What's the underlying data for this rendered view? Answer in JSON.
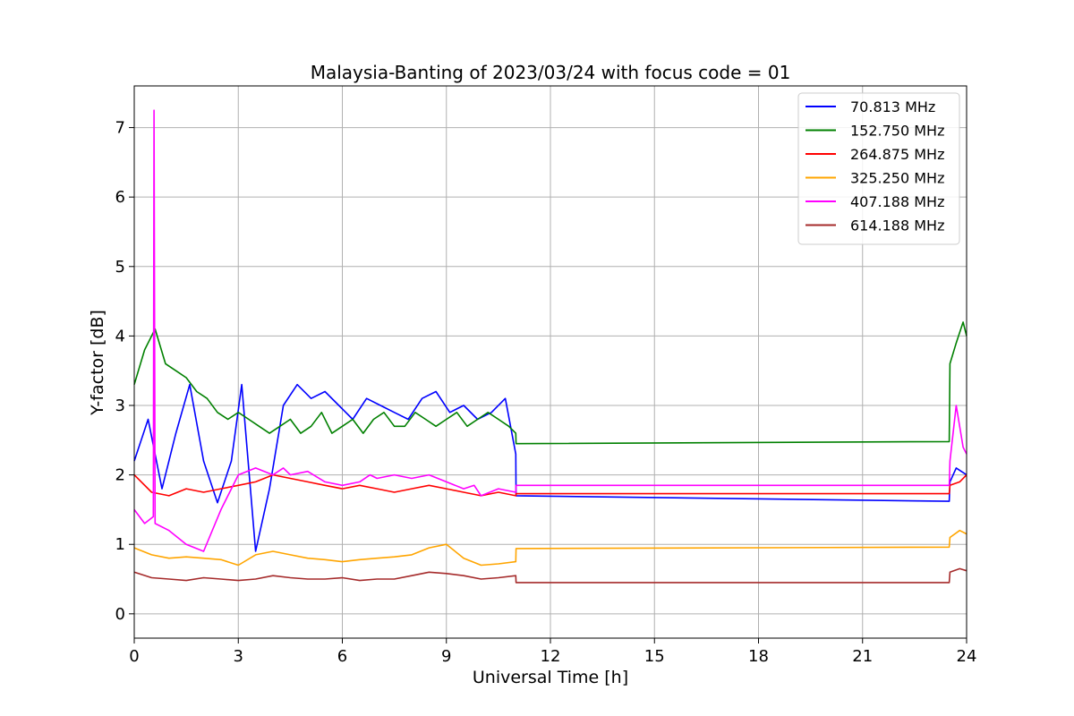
{
  "chart_data": {
    "type": "line",
    "title": "Malaysia-Banting of 2023/03/24 with focus code = 01",
    "xlabel": "Universal Time [h]",
    "ylabel": "Y-factor [dB]",
    "xlim": [
      0,
      24
    ],
    "ylim": [
      -0.35,
      7.6
    ],
    "xticks": [
      0,
      3,
      6,
      9,
      12,
      15,
      18,
      21,
      24
    ],
    "xtick_labels": [
      "0",
      "3",
      "6",
      "9",
      "12",
      "15",
      "18",
      "21",
      "24"
    ],
    "yticks": [
      0,
      1,
      2,
      3,
      4,
      5,
      6,
      7
    ],
    "ytick_labels": [
      "0",
      "1",
      "2",
      "3",
      "4",
      "5",
      "6",
      "7"
    ],
    "grid": true,
    "legend_position": "top-right",
    "series": [
      {
        "name": " 70.813 MHz",
        "color": "#0000ff",
        "x": [
          0,
          0.4,
          0.8,
          1.2,
          1.6,
          2.0,
          2.4,
          2.8,
          3.1,
          3.5,
          3.9,
          4.3,
          4.7,
          5.1,
          5.5,
          5.9,
          6.3,
          6.7,
          7.1,
          7.5,
          7.9,
          8.3,
          8.7,
          9.1,
          9.5,
          9.9,
          10.3,
          10.7,
          11.0,
          11.01,
          23.5,
          23.52,
          23.7,
          24
        ],
        "y": [
          2.2,
          2.8,
          1.8,
          2.6,
          3.3,
          2.2,
          1.6,
          2.2,
          3.3,
          0.9,
          1.8,
          3.0,
          3.3,
          3.1,
          3.2,
          3.0,
          2.8,
          3.1,
          3.0,
          2.9,
          2.8,
          3.1,
          3.2,
          2.9,
          3.0,
          2.8,
          2.9,
          3.1,
          2.3,
          1.7,
          1.62,
          1.9,
          2.1,
          2.0
        ]
      },
      {
        "name": "152.750 MHz",
        "color": "#008000",
        "x": [
          0,
          0.3,
          0.6,
          0.9,
          1.2,
          1.5,
          1.8,
          2.1,
          2.4,
          2.7,
          3.0,
          3.3,
          3.6,
          3.9,
          4.2,
          4.5,
          4.8,
          5.1,
          5.4,
          5.7,
          6.0,
          6.3,
          6.6,
          6.9,
          7.2,
          7.5,
          7.8,
          8.1,
          8.4,
          8.7,
          9.0,
          9.3,
          9.6,
          9.9,
          10.2,
          10.5,
          10.8,
          11.0,
          11.01,
          23.5,
          23.52,
          23.7,
          23.9,
          24
        ],
        "y": [
          3.3,
          3.8,
          4.1,
          3.6,
          3.5,
          3.4,
          3.2,
          3.1,
          2.9,
          2.8,
          2.9,
          2.8,
          2.7,
          2.6,
          2.7,
          2.8,
          2.6,
          2.7,
          2.9,
          2.6,
          2.7,
          2.8,
          2.6,
          2.8,
          2.9,
          2.7,
          2.7,
          2.9,
          2.8,
          2.7,
          2.8,
          2.9,
          2.7,
          2.8,
          2.9,
          2.8,
          2.7,
          2.6,
          2.45,
          2.48,
          3.6,
          3.9,
          4.2,
          4.0
        ]
      },
      {
        "name": "264.875 MHz",
        "color": "#ff0000",
        "x": [
          0,
          0.5,
          1.0,
          1.5,
          2.0,
          2.5,
          3.0,
          3.5,
          4.0,
          4.5,
          5.0,
          5.5,
          6.0,
          6.5,
          7.0,
          7.5,
          8.0,
          8.5,
          9.0,
          9.5,
          10.0,
          10.5,
          11.0,
          11.01,
          23.5,
          23.52,
          23.8,
          24
        ],
        "y": [
          2.0,
          1.75,
          1.7,
          1.8,
          1.75,
          1.8,
          1.85,
          1.9,
          2.0,
          1.95,
          1.9,
          1.85,
          1.8,
          1.85,
          1.8,
          1.75,
          1.8,
          1.85,
          1.8,
          1.75,
          1.7,
          1.75,
          1.7,
          1.73,
          1.73,
          1.85,
          1.9,
          2.0
        ]
      },
      {
        "name": "325.250 MHz",
        "color": "#ffa500",
        "x": [
          0,
          0.5,
          1.0,
          1.5,
          2.0,
          2.5,
          3.0,
          3.5,
          4.0,
          4.5,
          5.0,
          5.5,
          6.0,
          6.5,
          7.0,
          7.5,
          8.0,
          8.5,
          9.0,
          9.5,
          10.0,
          10.5,
          11.0,
          11.01,
          23.5,
          23.52,
          23.8,
          24
        ],
        "y": [
          0.95,
          0.85,
          0.8,
          0.82,
          0.8,
          0.78,
          0.7,
          0.85,
          0.9,
          0.85,
          0.8,
          0.78,
          0.75,
          0.78,
          0.8,
          0.82,
          0.85,
          0.95,
          1.0,
          0.8,
          0.7,
          0.72,
          0.75,
          0.94,
          0.96,
          1.1,
          1.2,
          1.15
        ]
      },
      {
        "name": "407.188 MHz",
        "color": "#ff00ff",
        "x": [
          0,
          0.3,
          0.55,
          0.57,
          0.6,
          1.0,
          1.5,
          2.0,
          2.5,
          3.0,
          3.5,
          4.0,
          4.3,
          4.5,
          5.0,
          5.5,
          6.0,
          6.5,
          6.8,
          7.0,
          7.5,
          8.0,
          8.5,
          9.0,
          9.5,
          9.8,
          10.0,
          10.5,
          11.0,
          11.01,
          23.5,
          23.52,
          23.7,
          23.9,
          24
        ],
        "y": [
          1.5,
          1.3,
          1.4,
          7.25,
          1.3,
          1.2,
          1.0,
          0.9,
          1.5,
          2.0,
          2.1,
          2.0,
          2.1,
          2.0,
          2.05,
          1.9,
          1.85,
          1.9,
          2.0,
          1.95,
          2.0,
          1.95,
          2.0,
          1.9,
          1.8,
          1.85,
          1.7,
          1.8,
          1.75,
          1.85,
          1.85,
          2.2,
          3.0,
          2.4,
          2.3
        ]
      },
      {
        "name": "614.188 MHz",
        "color": "#a52a2a",
        "x": [
          0,
          0.5,
          1.0,
          1.5,
          2.0,
          2.5,
          3.0,
          3.5,
          4.0,
          4.5,
          5.0,
          5.5,
          6.0,
          6.5,
          7.0,
          7.5,
          8.0,
          8.5,
          9.0,
          9.5,
          10.0,
          10.5,
          11.0,
          11.01,
          23.5,
          23.52,
          23.8,
          24
        ],
        "y": [
          0.6,
          0.52,
          0.5,
          0.48,
          0.52,
          0.5,
          0.48,
          0.5,
          0.55,
          0.52,
          0.5,
          0.5,
          0.52,
          0.48,
          0.5,
          0.5,
          0.55,
          0.6,
          0.58,
          0.55,
          0.5,
          0.52,
          0.55,
          0.45,
          0.45,
          0.6,
          0.65,
          0.62
        ]
      }
    ]
  }
}
